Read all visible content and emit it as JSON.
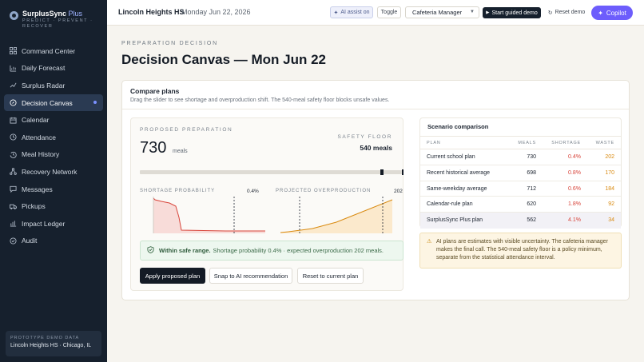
{
  "brand": {
    "name": "SurplusSync",
    "plus": "Plus",
    "tagline": "PREDICT · PREVENT · RECOVER"
  },
  "sidebar": {
    "items": [
      {
        "label": "Command Center",
        "icon": "grid-icon"
      },
      {
        "label": "Daily Forecast",
        "icon": "chart-icon"
      },
      {
        "label": "Surplus Radar",
        "icon": "trend-icon"
      },
      {
        "label": "Decision Canvas",
        "icon": "compass-icon",
        "active": true
      },
      {
        "label": "Calendar",
        "icon": "calendar-icon"
      },
      {
        "label": "Attendance",
        "icon": "clock-icon"
      },
      {
        "label": "Meal History",
        "icon": "history-icon"
      },
      {
        "label": "Recovery Network",
        "icon": "network-icon"
      },
      {
        "label": "Messages",
        "icon": "message-icon"
      },
      {
        "label": "Pickups",
        "icon": "truck-icon"
      },
      {
        "label": "Impact Ledger",
        "icon": "ledger-icon"
      },
      {
        "label": "Audit",
        "icon": "audit-icon"
      }
    ],
    "demo_label": "PROTOTYPE DEMO DATA",
    "demo_school": "Lincoln Heights HS · Chicago, IL"
  },
  "topbar": {
    "school": "Lincoln Heights HS",
    "separator": "·",
    "date": "Monday Jun 22, 2026",
    "ai_assist": "AI assist on",
    "toggle": "Toggle",
    "role": "Cafeteria Manager",
    "guided_demo": "Start guided demo",
    "reset_demo": "Reset demo",
    "copilot": "Copilot"
  },
  "main": {
    "eyebrow": "PREPARATION DECISION",
    "title": "Decision Canvas — Mon Jun 22"
  },
  "compare": {
    "title": "Compare plans",
    "subtitle": "Drag the slider to see shortage and overproduction shift. The 540-meal safety floor blocks unsafe values."
  },
  "proposal": {
    "label": "PROPOSED PREPARATION",
    "value": "730",
    "unit": "meals",
    "safety_label": "SAFETY FLOOR",
    "safety_value": "540 meals",
    "slider": {
      "min": 400,
      "max": 760,
      "value": 730,
      "floor": 540
    },
    "shortage_label": "SHORTAGE PROBABILITY",
    "shortage_value": "0.4%",
    "overproduction_label": "PROJECTED OVERPRODUCTION",
    "overproduction_value": "202",
    "safe_strong": "Within safe range.",
    "safe_text": "Shortage probability 0.4% · expected overproduction 202 meals.",
    "apply": "Apply proposed plan",
    "snap": "Snap to AI recommendation",
    "reset": "Reset to current plan"
  },
  "colors": {
    "accent": "#6d5dfc",
    "shortage": "#d8453b",
    "waste": "#d98a10",
    "safe": "#3c6b49"
  },
  "scenario": {
    "title": "Scenario comparison",
    "headers": {
      "plan": "PLAN",
      "meals": "MEALS",
      "shortage": "SHORTAGE",
      "waste": "WASTE"
    },
    "rows": [
      {
        "plan": "Current school plan",
        "meals": "730",
        "shortage": "0.4%",
        "waste": "202"
      },
      {
        "plan": "Recent historical average",
        "meals": "698",
        "shortage": "0.8%",
        "waste": "170"
      },
      {
        "plan": "Same-weekday average",
        "meals": "712",
        "shortage": "0.6%",
        "waste": "184"
      },
      {
        "plan": "Calendar-rule plan",
        "meals": "620",
        "shortage": "1.8%",
        "waste": "92"
      },
      {
        "plan": "SurplusSync Plus plan",
        "meals": "562",
        "shortage": "4.1%",
        "waste": "34"
      }
    ]
  },
  "ai_note": "AI plans are estimates with visible uncertainty. The cafeteria manager makes the final call. The 540-meal safety floor is a policy minimum, separate from the statistical attendance interval."
}
